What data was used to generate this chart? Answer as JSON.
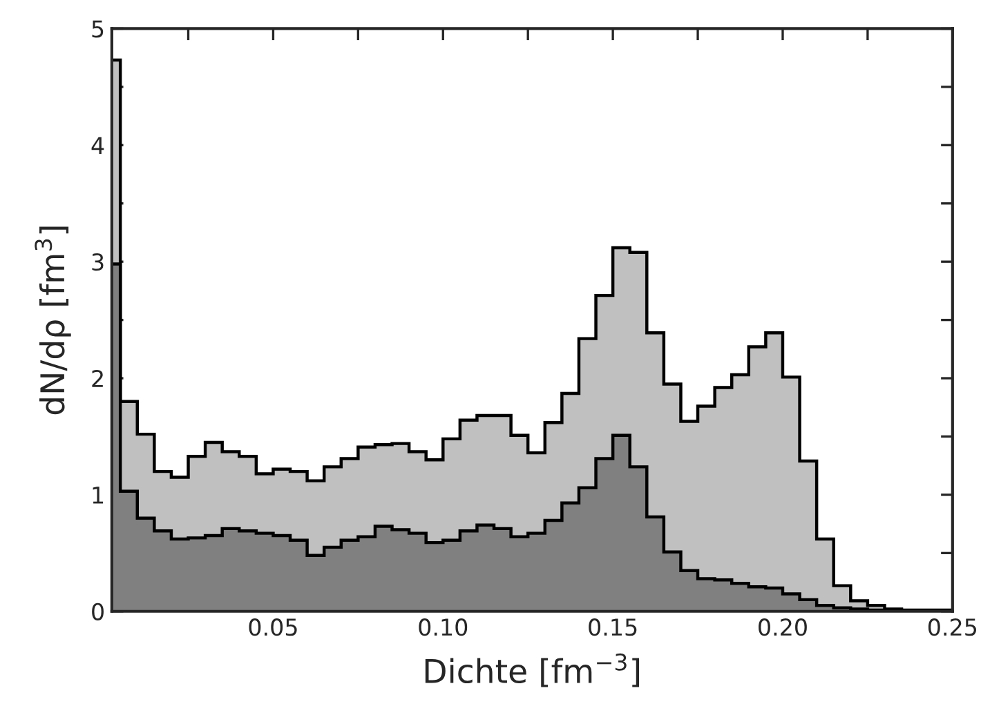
{
  "chart_data": {
    "type": "histogram",
    "xlabel": "Dichte [fm$^{−3}$]",
    "ylabel": "dN/dρ [fm$^{3}$]",
    "bins": [
      0,
      0.005,
      0.01,
      0.015,
      0.02,
      0.025,
      0.03,
      0.035,
      0.04,
      0.045,
      0.05,
      0.055,
      0.06,
      0.065,
      0.07,
      0.075,
      0.08,
      0.085,
      0.09,
      0.095,
      0.1,
      0.105,
      0.11,
      0.115,
      0.12,
      0.125,
      0.13,
      0.135,
      0.14,
      0.145,
      0.15,
      0.155,
      0.16,
      0.165,
      0.17,
      0.175,
      0.18,
      0.185,
      0.19,
      0.195,
      0.2,
      0.205,
      0.21,
      0.215,
      0.22,
      0.225,
      0.23,
      0.235,
      0.24,
      0.245,
      0.25
    ],
    "series": [
      {
        "color": "#c0c0c0",
        "values": [
          4.73,
          1.8,
          1.52,
          1.2,
          1.15,
          1.33,
          1.45,
          1.37,
          1.33,
          1.18,
          1.22,
          1.2,
          1.12,
          1.24,
          1.31,
          1.41,
          1.43,
          1.44,
          1.37,
          1.3,
          1.48,
          1.64,
          1.68,
          1.68,
          1.51,
          1.36,
          1.62,
          1.87,
          2.34,
          2.71,
          3.12,
          3.08,
          2.39,
          1.95,
          1.63,
          1.76,
          1.92,
          2.03,
          2.27,
          2.39,
          2.01,
          1.29,
          0.62,
          0.22,
          0.09,
          0.05,
          0.02,
          0.01,
          0.01,
          0.01
        ]
      },
      {
        "color": "#808080",
        "values": [
          2.98,
          1.03,
          0.8,
          0.69,
          0.62,
          0.63,
          0.65,
          0.71,
          0.69,
          0.67,
          0.65,
          0.61,
          0.48,
          0.55,
          0.61,
          0.64,
          0.73,
          0.7,
          0.67,
          0.59,
          0.61,
          0.69,
          0.74,
          0.71,
          0.64,
          0.67,
          0.78,
          0.93,
          1.06,
          1.31,
          1.51,
          1.24,
          0.81,
          0.51,
          0.35,
          0.28,
          0.27,
          0.24,
          0.21,
          0.2,
          0.15,
          0.1,
          0.05,
          0.03,
          0.02,
          0.01,
          0.01,
          0,
          0,
          0
        ]
      }
    ],
    "xlim": [
      0.0025,
      0.25
    ],
    "xticks": [
      {
        "value": 0.025,
        "label": null
      },
      0.05,
      {
        "value": 0.075,
        "label": null
      },
      {
        "value": 0.1,
        "label": "0.10"
      },
      {
        "value": 0.125,
        "label": null
      },
      0.15,
      {
        "value": 0.175,
        "label": null
      },
      {
        "value": 0.2,
        "label": "0.20"
      },
      {
        "value": 0.225,
        "label": null
      },
      0.25
    ],
    "ylim": [
      0,
      5
    ],
    "yticks": [
      0,
      {
        "value": 0.5,
        "label": null
      },
      1,
      {
        "value": 1.5,
        "label": null
      },
      2,
      {
        "value": 2.5,
        "label": null
      },
      3,
      {
        "value": 3.5,
        "label": null
      },
      4,
      {
        "value": 4.5,
        "label": null
      },
      5
    ],
    "grid": false,
    "legend": false
  }
}
